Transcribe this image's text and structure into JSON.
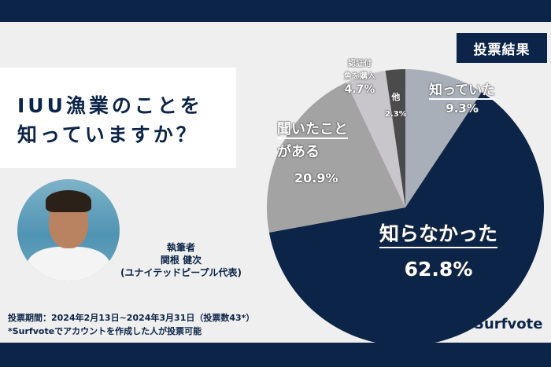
{
  "title_lines": [
    "IUU漁業のことを",
    "知っていますか？"
  ],
  "badge": "投票結果",
  "author": {
    "role": "執筆者",
    "name": "関根 健次",
    "org": "(ユナイテッドピープル代表)"
  },
  "footer": {
    "period": "投票期間：2024年2月13日~2024年3月31日（投票数43*）",
    "note": "*Surfvoteでアカウントを作成した人が投票可能"
  },
  "logo": "Surfvote",
  "colors": {
    "navy": "#0b2447",
    "background": "#efefef"
  },
  "chart_data": {
    "type": "pie",
    "start": "12 o'clock, clockwise",
    "slices": [
      {
        "label": "知っていた",
        "value": 9.3,
        "display": "9.3%",
        "color": "#a9afb8"
      },
      {
        "label": "知らなかった",
        "value": 62.8,
        "display": "62.8%",
        "color": "#0b2447"
      },
      {
        "label": "聞いたことがある",
        "label_lines": [
          "聞いたこと",
          "がある"
        ],
        "value": 20.9,
        "display": "20.9%",
        "color": "#a3a3a3"
      },
      {
        "label": "認証付魚を購入",
        "label_lines": [
          "認証付",
          "魚を購入"
        ],
        "value": 4.7,
        "display": "4.7%",
        "color": "#c9c6cb"
      },
      {
        "label": "他",
        "value": 2.3,
        "display": "2.3%",
        "color": "#4b4b4b"
      }
    ]
  }
}
